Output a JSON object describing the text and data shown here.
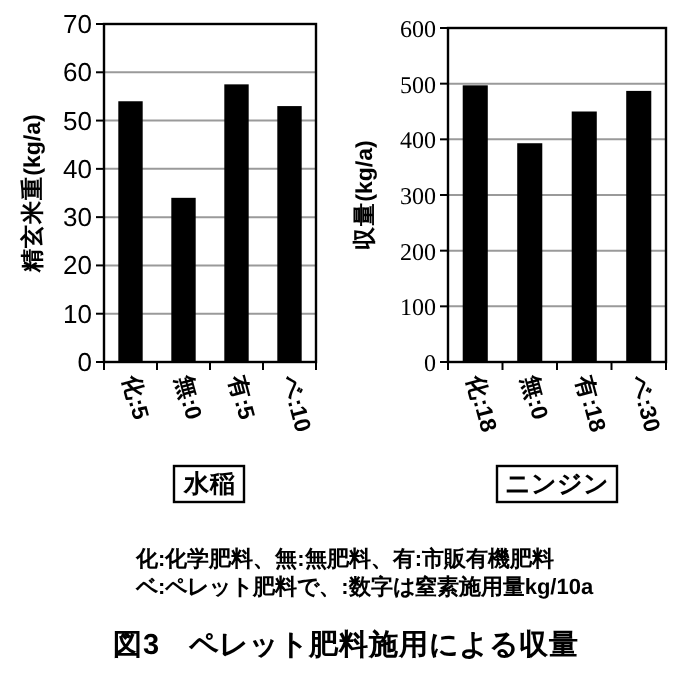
{
  "chart_data": [
    {
      "type": "bar",
      "title": "図3　ペレット肥料施用による収量",
      "annotations": [
        "化:化学肥料、無:無肥料、有:市販有機肥料",
        "ベ:ペレット肥料で、:数字は窒素施用量kg/10a"
      ],
      "xlabel": "水稲",
      "ylabel": "精玄米重(kg/a)",
      "categories": [
        "化:5",
        "無:0",
        "有:5",
        "ベ:10"
      ],
      "values": [
        54,
        34,
        57.5,
        53
      ],
      "color": "#000000",
      "ylim": [
        0,
        70
      ],
      "yticks": [
        0,
        10,
        20,
        30,
        40,
        50,
        60,
        70
      ],
      "grid": "y"
    },
    {
      "type": "bar",
      "xlabel": "ニンジン",
      "ylabel": "収量(kg/a)",
      "categories": [
        "化:18",
        "無:0",
        "有:18",
        "ベ:30"
      ],
      "values": [
        497,
        393,
        450,
        487
      ],
      "color": "#000000",
      "ylim": [
        0,
        600
      ],
      "yticks": [
        0,
        100,
        200,
        300,
        400,
        500,
        600
      ],
      "grid": "y"
    }
  ]
}
